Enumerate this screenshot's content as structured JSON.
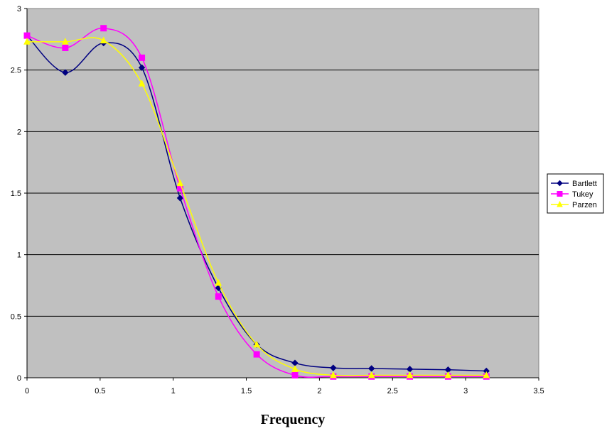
{
  "chart_data": {
    "type": "line",
    "title": "",
    "xlabel": "Frequency",
    "ylabel": "",
    "xlim": [
      0,
      3.5
    ],
    "ylim": [
      0,
      3
    ],
    "xticks": [
      "0",
      "0.5",
      "1",
      "1.5",
      "2",
      "2.5",
      "3",
      "3.5"
    ],
    "yticks": [
      "0",
      "0.5",
      "1",
      "1.5",
      "2",
      "2.5",
      "3"
    ],
    "grid": "horizontal",
    "smoothed": true,
    "legend_position": "right",
    "background_color": "#c0c0c0",
    "x": [
      0,
      0.2618,
      0.5236,
      0.7854,
      1.0472,
      1.309,
      1.5708,
      1.8326,
      2.0944,
      2.3562,
      2.618,
      2.8798,
      3.1416
    ],
    "series": [
      {
        "name": "Bartlett",
        "color": "#000080",
        "marker": "diamond",
        "values": [
          2.78,
          2.48,
          2.72,
          2.52,
          1.46,
          0.73,
          0.27,
          0.12,
          0.08,
          0.075,
          0.07,
          0.065,
          0.055
        ]
      },
      {
        "name": "Tukey",
        "color": "#ff00ff",
        "marker": "square",
        "values": [
          2.78,
          2.68,
          2.84,
          2.6,
          1.54,
          0.66,
          0.19,
          0.02,
          0.01,
          0.01,
          0.01,
          0.01,
          0.01
        ]
      },
      {
        "name": "Parzen",
        "color": "#ffff00",
        "marker": "triangle",
        "values": [
          2.73,
          2.73,
          2.74,
          2.39,
          1.58,
          0.77,
          0.27,
          0.07,
          0.02,
          0.02,
          0.02,
          0.02,
          0.02
        ]
      }
    ]
  }
}
